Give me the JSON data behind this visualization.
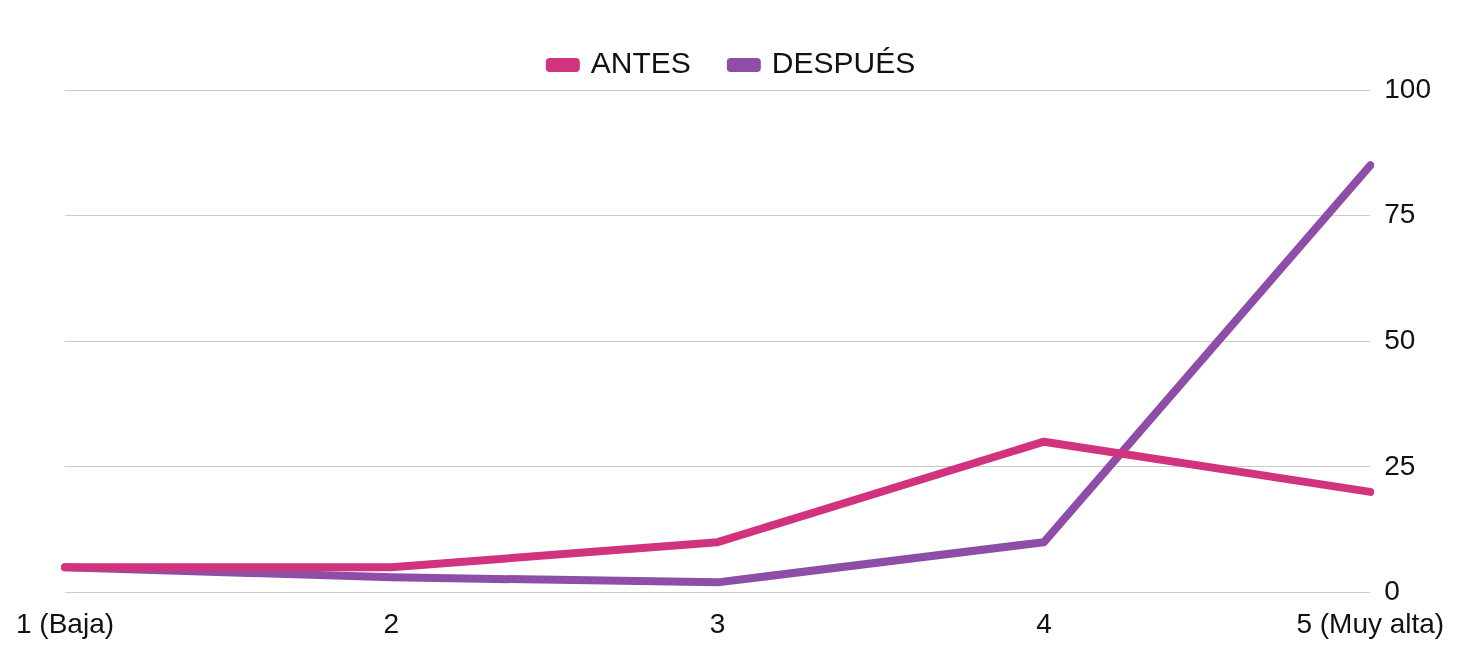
{
  "chart_data": {
    "type": "line",
    "categories": [
      "1 (Baja)",
      "2",
      "3",
      "4",
      "5 (Muy alta)"
    ],
    "series": [
      {
        "name": "ANTES",
        "color": "#d2337e",
        "values": [
          5,
          5,
          10,
          30,
          20
        ]
      },
      {
        "name": "DESPUÉS",
        "color": "#8e4ea8",
        "values": [
          5,
          3,
          2,
          10,
          85
        ]
      }
    ],
    "ylim": [
      0,
      100
    ],
    "yticks": [
      0,
      25,
      50,
      75,
      100
    ],
    "grid": "y",
    "legend": "top",
    "marker": "none",
    "line_style": "solid"
  }
}
